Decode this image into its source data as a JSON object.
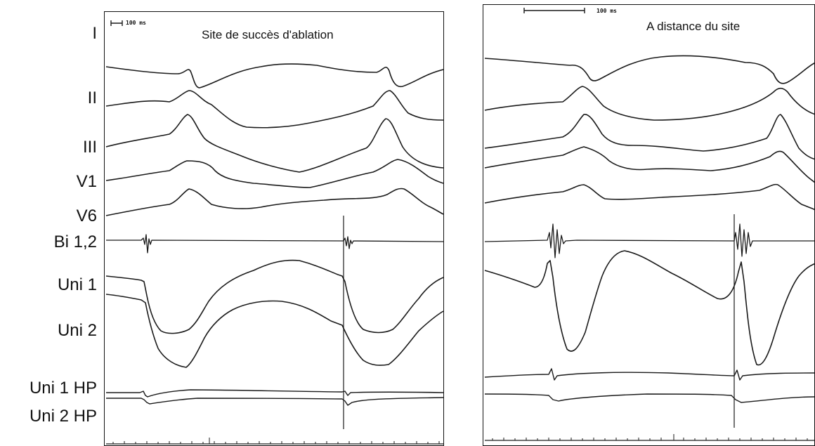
{
  "leads": [
    "I",
    "II",
    "III",
    "V1",
    "V6",
    "Bi 1,2",
    "Uni 1",
    "Uni 2",
    "Uni 1 HP",
    "Uni 2 HP"
  ],
  "panels": [
    {
      "title": "Site de succès d'ablation",
      "scale_label": "100 ms"
    },
    {
      "title": "A distance du site",
      "scale_label": "100 ms"
    }
  ],
  "trace_color": "#1a1a1a"
}
